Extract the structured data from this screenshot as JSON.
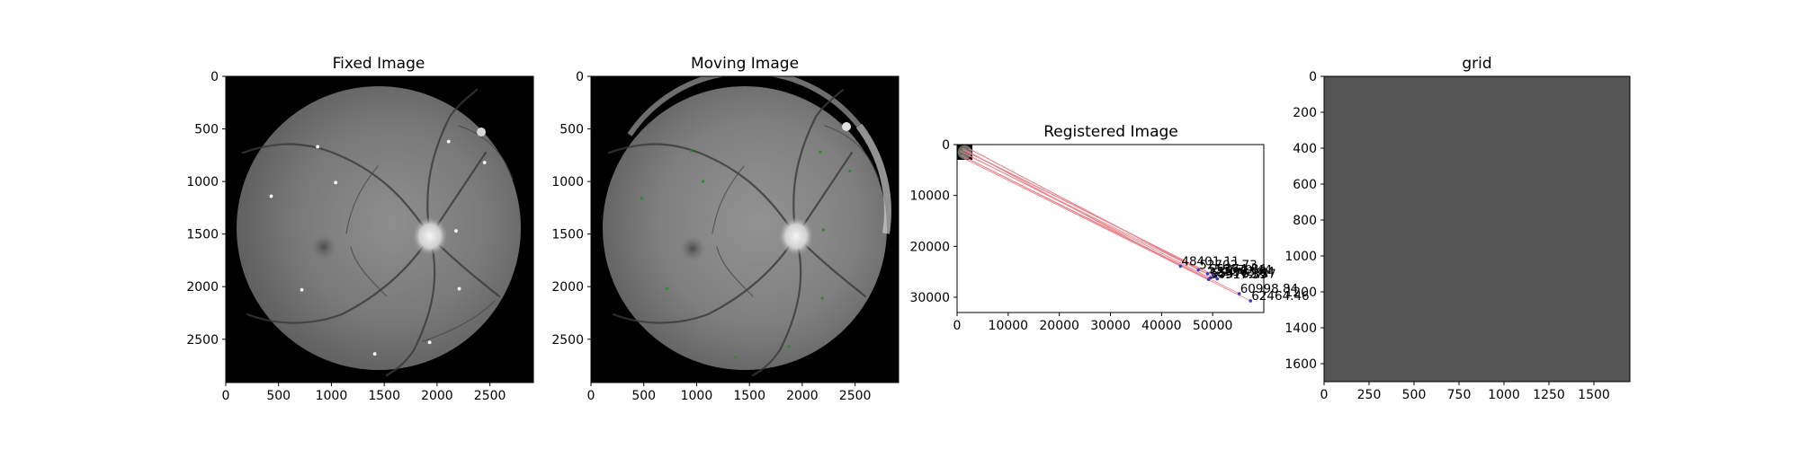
{
  "figure": {
    "panels": [
      {
        "key": "fixed",
        "title": "Fixed Image",
        "xticks": [
          "0",
          "500",
          "1000",
          "1500",
          "2000",
          "2500"
        ],
        "yticks": [
          "0",
          "500",
          "1000",
          "1500",
          "2000",
          "2500"
        ]
      },
      {
        "key": "moving",
        "title": "Moving Image",
        "xticks": [
          "0",
          "500",
          "1000",
          "1500",
          "2000",
          "2500"
        ],
        "yticks": [
          "0",
          "500",
          "1000",
          "1500",
          "2000",
          "2500"
        ]
      },
      {
        "key": "registered",
        "title": "Registered Image",
        "xticks": [
          "0",
          "10000",
          "20000",
          "30000",
          "40000",
          "50000"
        ],
        "yticks": [
          "0",
          "10000",
          "20000",
          "30000"
        ]
      },
      {
        "key": "grid",
        "title": "grid",
        "xticks": [
          "0",
          "250",
          "500",
          "750",
          "1000",
          "1250",
          "1500"
        ],
        "yticks": [
          "0",
          "200",
          "400",
          "600",
          "800",
          "1000",
          "1200",
          "1400",
          "1600"
        ]
      }
    ]
  },
  "chart_data": [
    {
      "type": "image",
      "title": "Fixed Image",
      "xlim": [
        0,
        2912
      ],
      "ylim": [
        2912,
        0
      ],
      "background": "#000000",
      "fundus": {
        "center": [
          1455,
          1455
        ],
        "radius": 1350
      },
      "marker_color": "#ffffff",
      "points": [
        [
          870,
          670
        ],
        [
          2110,
          620
        ],
        [
          2450,
          820
        ],
        [
          1040,
          1010
        ],
        [
          430,
          1140
        ],
        [
          2180,
          1470
        ],
        [
          720,
          2030
        ],
        [
          2210,
          2020
        ],
        [
          1930,
          2530
        ],
        [
          1410,
          2640
        ]
      ]
    },
    {
      "type": "image",
      "title": "Moving Image",
      "xlim": [
        0,
        2912
      ],
      "ylim": [
        2912,
        0
      ],
      "background": "#000000",
      "fundus": {
        "center": [
          1455,
          1455
        ],
        "radius": 1350
      },
      "marker_color": "#2e8b2e",
      "points": [
        [
          950,
          710
        ],
        [
          2170,
          720
        ],
        [
          2450,
          900
        ],
        [
          1060,
          1000
        ],
        [
          480,
          1160
        ],
        [
          2200,
          1460
        ],
        [
          720,
          2020
        ],
        [
          2190,
          2110
        ],
        [
          1870,
          2570
        ],
        [
          1370,
          2670
        ]
      ]
    },
    {
      "type": "scatter",
      "title": "Registered Image",
      "xlim": [
        0,
        60000
      ],
      "ylim": [
        33000,
        0
      ],
      "inset": {
        "xlim": [
          0,
          3000
        ],
        "ylim": [
          3000,
          0
        ],
        "background": "#000000"
      },
      "line_color": "#e8828a",
      "marker_color": "#3b3bbf",
      "points": [
        {
          "x": 43700,
          "y": 23900,
          "label": "48401.11"
        },
        {
          "x": 47200,
          "y": 24600,
          "label": "52702.73"
        },
        {
          "x": 49000,
          "y": 25400,
          "label": "55374.84"
        },
        {
          "x": 50100,
          "y": 25600,
          "label": "55579.44"
        },
        {
          "x": 49500,
          "y": 26200,
          "label": "55476.52"
        },
        {
          "x": 50600,
          "y": 25900,
          "label": "55963.84"
        },
        {
          "x": 49200,
          "y": 26500,
          "label": "54917.35"
        },
        {
          "x": 50900,
          "y": 26400,
          "label": "55763.57"
        },
        {
          "x": 55200,
          "y": 29300,
          "label": "60998.84"
        },
        {
          "x": 57400,
          "y": 30700,
          "label": "62464.46"
        }
      ]
    },
    {
      "type": "image",
      "title": "grid",
      "xlim": [
        0,
        1700
      ],
      "ylim": [
        1700,
        0
      ],
      "color": "#545454"
    }
  ]
}
